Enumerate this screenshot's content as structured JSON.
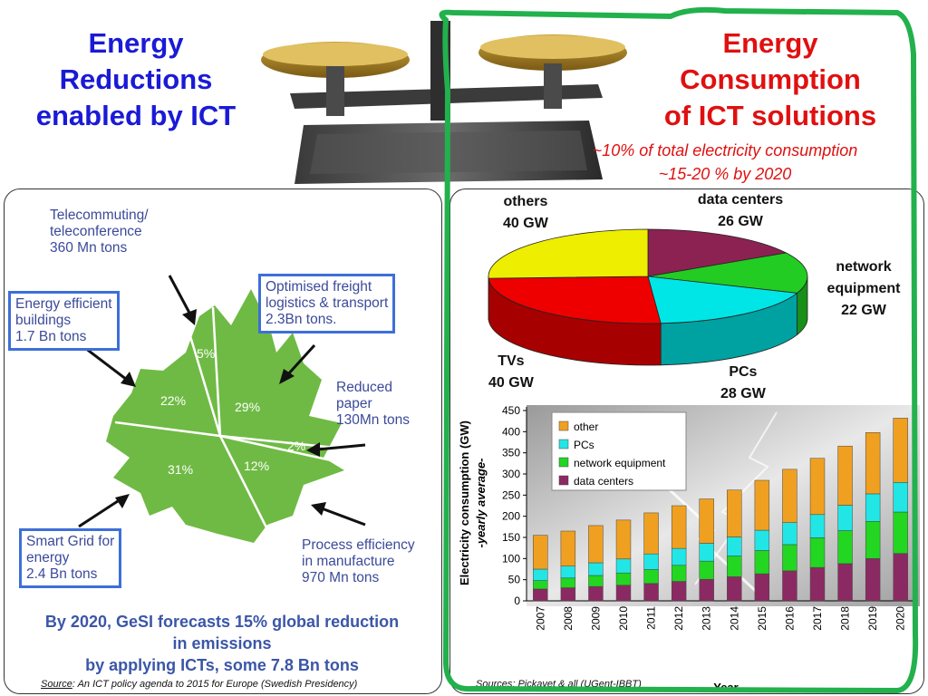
{
  "titles": {
    "left": [
      "Energy",
      "Reductions",
      "enabled by ICT"
    ],
    "right": [
      "Energy",
      "Consumption",
      "of ICT solutions"
    ],
    "right_sub": [
      "~10% of total electricity consumption",
      "~15-20 % by 2020"
    ]
  },
  "colors": {
    "left_title": "#1a1ad6",
    "right_title": "#e01010",
    "leaf": "#6fba44",
    "box_border": "#3d6fd9",
    "green_outline": "#22b14c"
  },
  "leaf": {
    "telecommuting": [
      "Telecommuting/",
      "teleconference",
      "360 Mn tons"
    ],
    "freight": [
      "Optimised freight",
      "logistics & transport",
      "2.3Bn tons."
    ],
    "buildings": [
      "Energy efficient",
      "buildings",
      "1.7 Bn tons"
    ],
    "paper": [
      "Reduced",
      "paper",
      "130Mn tons"
    ],
    "grid": [
      "Smart Grid for",
      "energy",
      "2.4 Bn tons"
    ],
    "process": [
      "Process efficiency",
      "in manufacture",
      "970 Mn tons"
    ],
    "segments": [
      "5%",
      "22%",
      "29%",
      "2%",
      "31%",
      "12%"
    ],
    "forecast": [
      "By 2020, GeSI forecasts 15% global reduction",
      "in emissions",
      "by applying ICTs, some 7.8 Bn tons"
    ],
    "source_label": "Source",
    "source_rest": ": An ICT policy agenda to 2015 for Europe (Swedish Presidency)"
  },
  "chart_data": [
    {
      "type": "pie",
      "labels": [
        "data centers",
        "network equipment",
        "PCs",
        "TVs",
        "others"
      ],
      "values": [
        26,
        22,
        28,
        40,
        40
      ],
      "value_labels": [
        "26 GW",
        "22 GW",
        "28 GW",
        "40 GW",
        "40 GW"
      ],
      "colors": [
        "#8b2252",
        "#22cc22",
        "#00e6e6",
        "#ee0000",
        "#eeee00"
      ]
    },
    {
      "type": "bar",
      "stacked": true,
      "categories": [
        "2007",
        "2008",
        "2009",
        "2010",
        "2011",
        "2012",
        "2013",
        "2014",
        "2015",
        "2016",
        "2017",
        "2018",
        "2019",
        "2020"
      ],
      "series": [
        {
          "name": "data centers",
          "color": "#8b2a62",
          "values": [
            28,
            31,
            34,
            37,
            41,
            46,
            51,
            57,
            64,
            71,
            79,
            88,
            100,
            112
          ]
        },
        {
          "name": "network equipment",
          "color": "#22d622",
          "values": [
            20,
            23,
            26,
            29,
            33,
            38,
            43,
            49,
            55,
            62,
            70,
            78,
            88,
            98
          ]
        },
        {
          "name": "PCs",
          "color": "#22e6e6",
          "values": [
            27,
            28,
            30,
            33,
            37,
            40,
            42,
            45,
            48,
            52,
            55,
            60,
            65,
            70
          ]
        },
        {
          "name": "other",
          "color": "#f0a020",
          "values": [
            80,
            83,
            88,
            92,
            97,
            101,
            105,
            111,
            118,
            126,
            133,
            140,
            145,
            152
          ]
        }
      ],
      "ylabel": [
        "Electricity consumption (GW)",
        "-yearly average-"
      ],
      "xlabel": "Year",
      "ylim": [
        0,
        450
      ],
      "yticks": [
        0,
        50,
        100,
        150,
        200,
        250,
        300,
        350,
        400,
        450
      ],
      "legend_order": [
        "other",
        "PCs",
        "network equipment",
        "data centers"
      ],
      "legend_position": "top-left",
      "source": "Sources: Pickavet & all (UGent-IBBT)"
    }
  ]
}
